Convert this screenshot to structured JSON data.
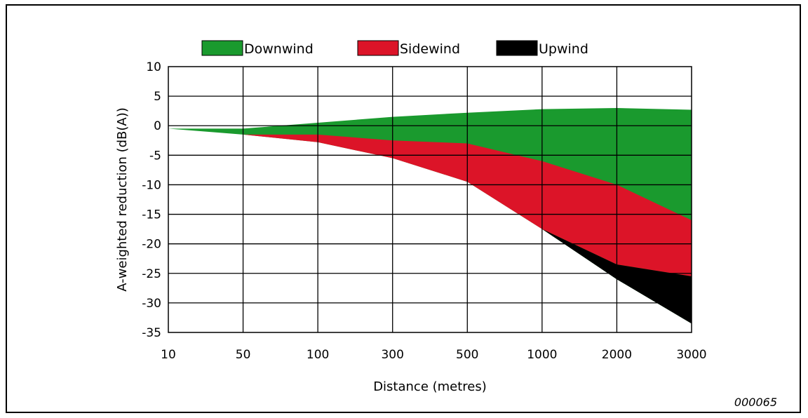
{
  "chart_data": {
    "type": "area",
    "x": [
      "10",
      "50",
      "100",
      "300",
      "500",
      "1000",
      "2000",
      "3000"
    ],
    "xlabel": "Distance (metres)",
    "ylabel": "A-weighted reduction (dB(A))",
    "ylim": [
      -35,
      10
    ],
    "yticks": [
      10,
      5,
      0,
      -5,
      -10,
      -15,
      -20,
      -25,
      -30,
      -35
    ],
    "grid": true,
    "legend_position": "top",
    "series": [
      {
        "name": "Downwind",
        "color": "#1a9a2e",
        "upper": [
          -0.5,
          -0.5,
          0.5,
          1.5,
          2.2,
          2.8,
          3.0,
          2.7
        ],
        "lower": [
          -0.5,
          -1.5,
          -2.8,
          -5.5,
          -9.5,
          -17.5,
          -26.0,
          -33.5
        ]
      },
      {
        "name": "Sidewind",
        "color": "#dc1428",
        "upper": [
          -0.5,
          -1.5,
          -1.5,
          -2.5,
          -3.0,
          -6.0,
          -10.0,
          -16.0
        ],
        "lower": [
          -0.5,
          -1.5,
          -2.8,
          -5.5,
          -9.5,
          -17.5,
          -23.5,
          -25.5
        ]
      },
      {
        "name": "Upwind",
        "color": "#000000",
        "upper": [
          -0.5,
          -1.5,
          -2.8,
          -5.5,
          -9.5,
          -17.5,
          -23.5,
          -25.5
        ],
        "lower": [
          -0.5,
          -1.5,
          -2.8,
          -5.5,
          -9.5,
          -17.5,
          -26.0,
          -33.5
        ]
      }
    ],
    "annotation": "000065"
  }
}
